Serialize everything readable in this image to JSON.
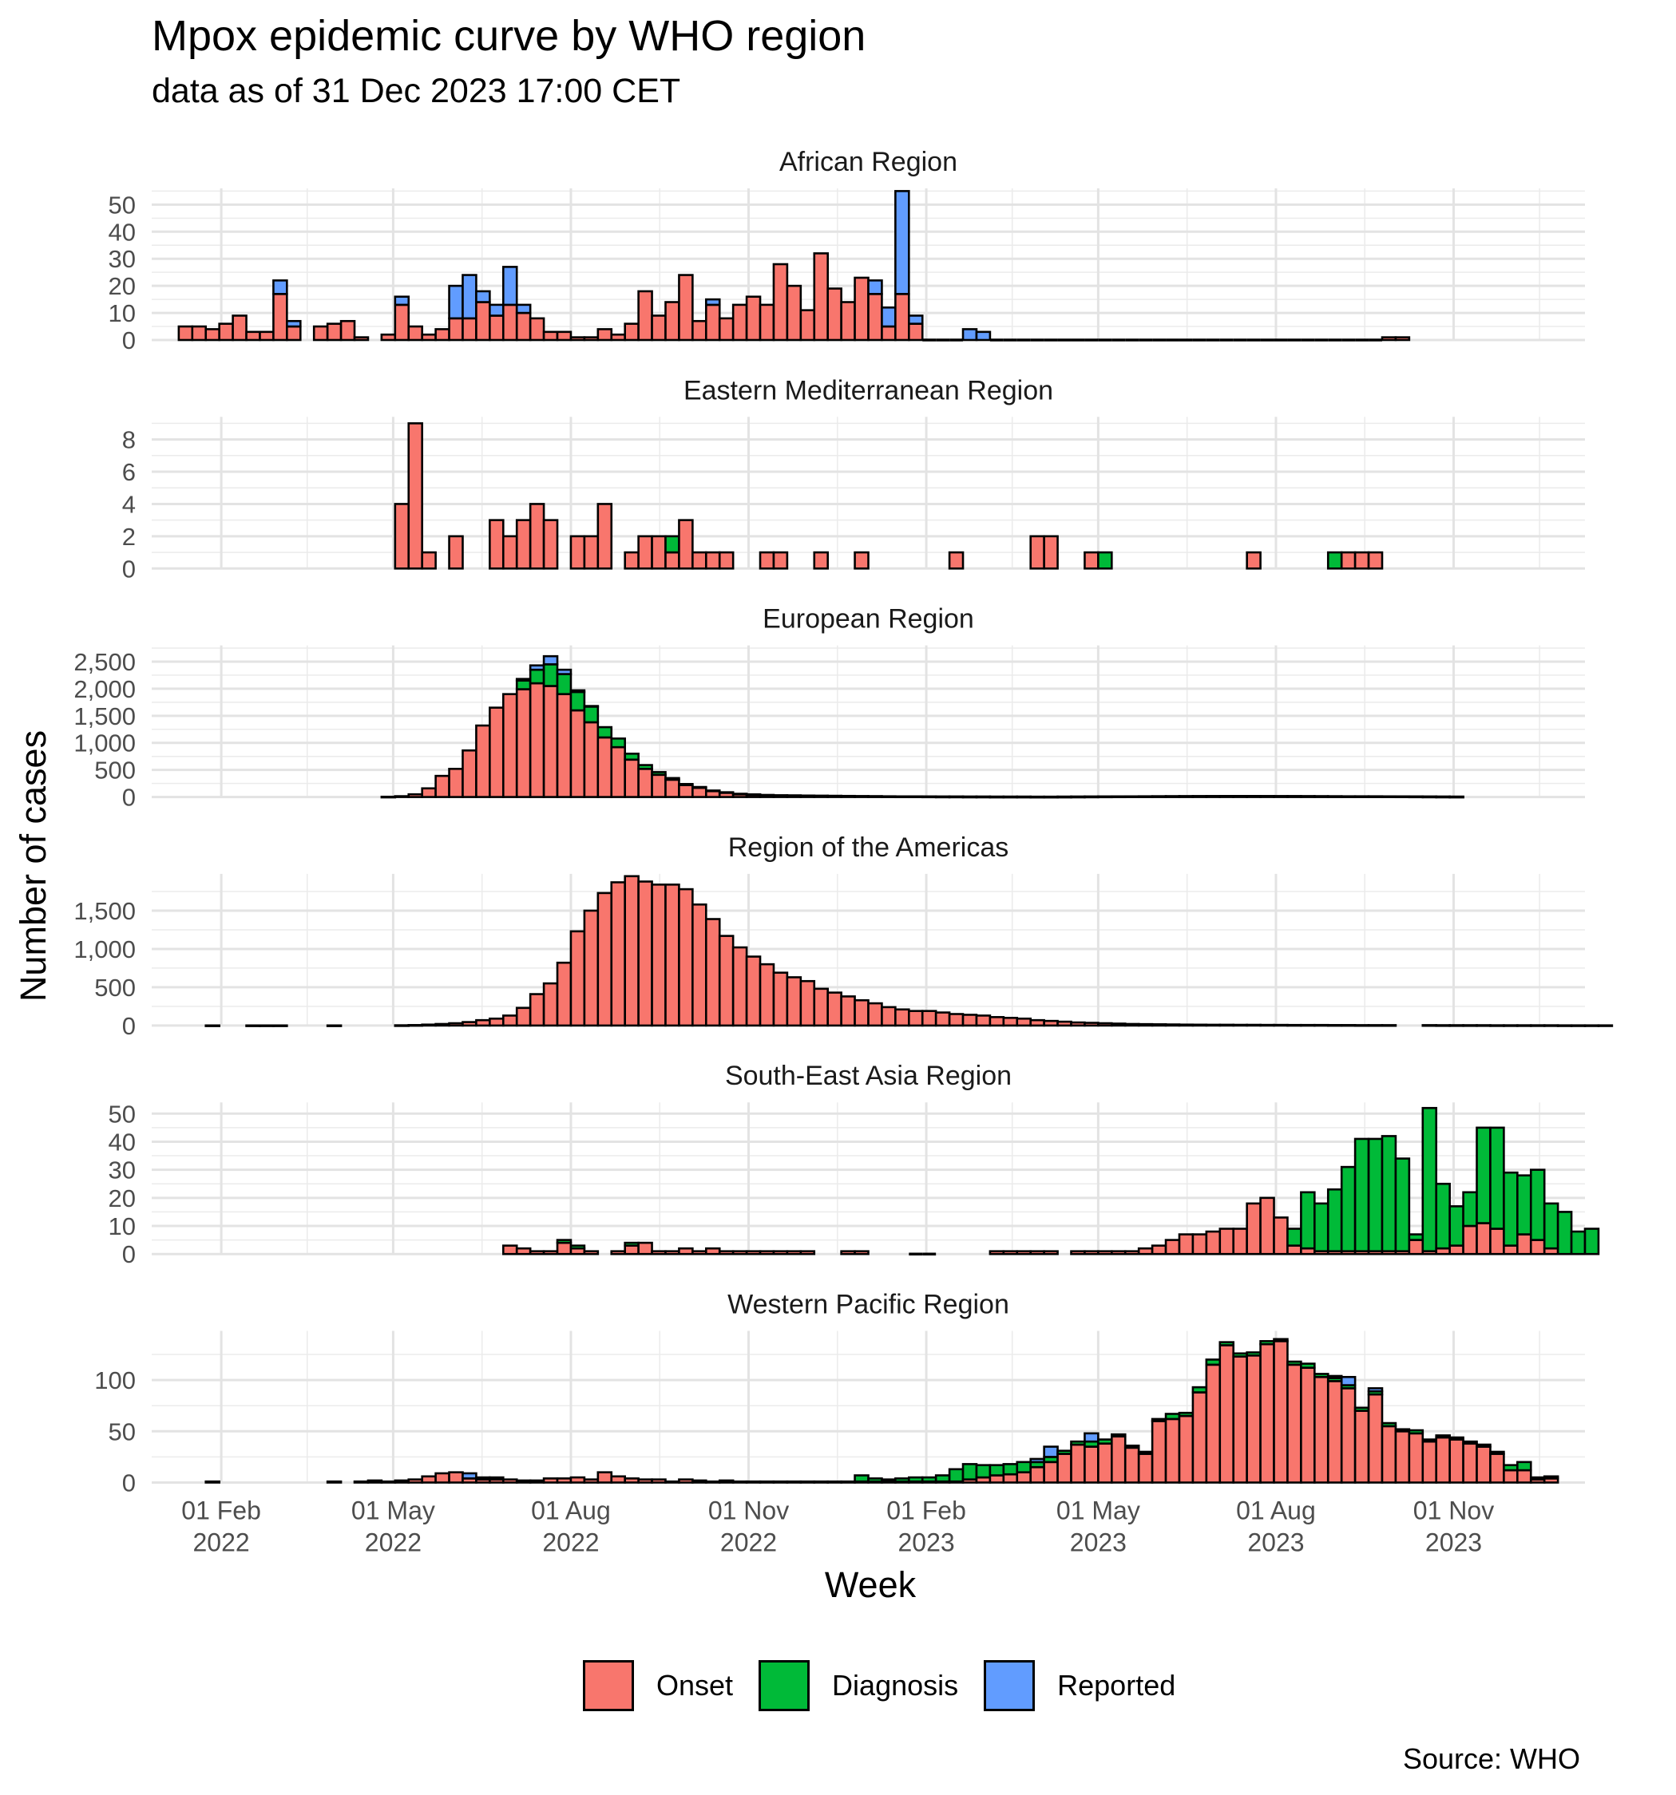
{
  "figure": {
    "title": "Mpox epidemic curve by WHO region",
    "subtitle": "data as of 31 Dec 2023 17:00 CET",
    "caption": "Source: WHO",
    "xlabel": "Week",
    "ylabel": "Number of cases"
  },
  "legend": [
    {
      "label": "Onset",
      "color": "#F8766D"
    },
    {
      "label": "Diagnosis",
      "color": "#00BA38"
    },
    {
      "label": "Reported",
      "color": "#619CFF"
    }
  ],
  "chart_data": {
    "type": "bar",
    "stacked": true,
    "facets": "vertical, free y scales, shared x axis",
    "x_unit": "week (start date)",
    "x_range": [
      "2021-12-27",
      "2024-01-08"
    ],
    "x_ticks": [
      {
        "date": "2022-02-01",
        "line1": "01 Feb",
        "line2": "2022"
      },
      {
        "date": "2022-05-01",
        "line1": "01 May",
        "line2": "2022"
      },
      {
        "date": "2022-08-01",
        "line1": "01 Aug",
        "line2": "2022"
      },
      {
        "date": "2022-11-01",
        "line1": "01 Nov",
        "line2": "2022"
      },
      {
        "date": "2023-02-01",
        "line1": "01 Feb",
        "line2": "2023"
      },
      {
        "date": "2023-05-01",
        "line1": "01 May",
        "line2": "2023"
      },
      {
        "date": "2023-08-01",
        "line1": "01 Aug",
        "line2": "2023"
      },
      {
        "date": "2023-11-01",
        "line1": "01 Nov",
        "line2": "2023"
      }
    ],
    "series_names": [
      "Onset",
      "Diagnosis",
      "Reported"
    ],
    "panels": [
      {
        "name": "African Region",
        "ylim": [
          0,
          56
        ],
        "yticks": [
          0,
          10,
          20,
          30,
          40,
          50
        ],
        "ytick_labels": [
          "0",
          "10",
          "20",
          "30",
          "40",
          "50"
        ],
        "start": "2022-01-10",
        "onset": [
          5,
          5,
          4,
          6,
          9,
          3,
          3,
          17,
          5,
          null,
          5,
          6,
          7,
          1,
          null,
          2,
          13,
          5,
          2,
          4,
          8,
          8,
          14,
          9,
          13,
          10,
          8,
          3,
          3,
          1,
          1,
          4,
          2,
          6,
          18,
          9,
          14,
          24,
          7,
          13,
          8,
          13,
          16,
          13,
          28,
          20,
          11,
          32,
          19,
          14,
          23,
          17,
          5,
          17,
          6,
          0,
          0,
          0,
          0,
          0,
          0,
          0,
          0,
          0,
          0,
          0,
          0,
          0,
          0,
          0,
          0,
          0,
          0,
          0,
          0,
          0,
          0,
          0,
          0,
          0,
          0,
          0,
          0,
          0,
          0,
          0,
          0,
          0,
          0,
          1,
          1
        ],
        "diagnosis": [],
        "reported": [
          0,
          0,
          0,
          0,
          0,
          0,
          0,
          5,
          2,
          0,
          0,
          0,
          0,
          0,
          0,
          0,
          3,
          0,
          0,
          0,
          12,
          16,
          4,
          4,
          14,
          3,
          0,
          0,
          0,
          0,
          0,
          0,
          0,
          0,
          0,
          0,
          0,
          0,
          0,
          2,
          0,
          0,
          0,
          0,
          0,
          0,
          0,
          0,
          0,
          0,
          0,
          5,
          7,
          38,
          3,
          0,
          0,
          0,
          4,
          3
        ]
      },
      {
        "name": "Eastern Mediterranean Region",
        "ylim": [
          0,
          9.4
        ],
        "yticks": [
          0,
          2,
          4,
          6,
          8
        ],
        "ytick_labels": [
          "0",
          "2",
          "4",
          "6",
          "8"
        ],
        "start": "2022-05-02",
        "onset": [
          4,
          9,
          1,
          null,
          2,
          null,
          null,
          3,
          2,
          3,
          4,
          3,
          null,
          2,
          2,
          4,
          null,
          1,
          2,
          2,
          1,
          3,
          1,
          1,
          1,
          null,
          null,
          1,
          1,
          null,
          null,
          1,
          null,
          null,
          1,
          null,
          null,
          null,
          null,
          null,
          null,
          1,
          null,
          null,
          null,
          null,
          null,
          2,
          2,
          null,
          null,
          1,
          0,
          null,
          null,
          null,
          null,
          null,
          null,
          null,
          null,
          null,
          null,
          1,
          null,
          null,
          null,
          null,
          null,
          0,
          1,
          1,
          1
        ],
        "diagnosis": [
          0,
          0,
          0,
          0,
          0,
          0,
          0,
          0,
          0,
          0,
          0,
          0,
          0,
          0,
          0,
          0,
          0,
          0,
          0,
          0,
          1,
          0,
          0,
          0,
          0,
          0,
          0,
          0,
          0,
          0,
          0,
          0,
          0,
          0,
          0,
          0,
          0,
          0,
          0,
          0,
          0,
          0,
          0,
          0,
          0,
          0,
          0,
          0,
          0,
          0,
          0,
          0,
          1,
          0,
          0,
          0,
          0,
          0,
          0,
          0,
          0,
          0,
          0,
          0,
          0,
          0,
          0,
          0,
          0,
          1
        ]
      },
      {
        "name": "European Region",
        "ylim": [
          0,
          2800
        ],
        "yticks": [
          0,
          500,
          1000,
          1500,
          2000,
          2500
        ],
        "ytick_labels": [
          "0",
          "500",
          "1,000",
          "1,500",
          "2,000",
          "2,500"
        ],
        "start": "2022-04-25",
        "onset": [
          5,
          15,
          50,
          160,
          390,
          520,
          860,
          1320,
          1650,
          1900,
          1990,
          2100,
          2050,
          1900,
          1600,
          1380,
          1100,
          920,
          690,
          520,
          410,
          320,
          220,
          170,
          110,
          80,
          55,
          45,
          35,
          30,
          28,
          25,
          22,
          20,
          18,
          15,
          14,
          12,
          10,
          10,
          9,
          8,
          8,
          7,
          7,
          6,
          6,
          6,
          5,
          5,
          6,
          7,
          8,
          9,
          10,
          11,
          12,
          13,
          14,
          15,
          16,
          17,
          18,
          18,
          18,
          17,
          16,
          16,
          15,
          14,
          13,
          12,
          12,
          12,
          11,
          10,
          9,
          8,
          7,
          6
        ],
        "diagnosis": [
          0,
          0,
          0,
          0,
          0,
          0,
          0,
          0,
          0,
          0,
          160,
          250,
          400,
          370,
          340,
          290,
          190,
          160,
          110,
          70,
          50,
          30,
          20,
          15,
          10,
          8,
          5,
          4,
          3,
          2,
          2,
          2,
          2,
          2,
          2,
          2,
          1,
          1,
          1,
          1,
          1,
          1,
          1,
          1,
          1,
          1,
          1,
          1,
          1,
          1,
          1,
          1,
          1,
          1,
          1,
          1,
          1,
          1,
          1,
          1,
          1,
          1,
          1,
          1,
          1,
          1,
          1,
          1,
          1,
          1,
          1,
          1,
          1,
          1,
          1,
          1,
          1,
          1,
          1,
          1
        ],
        "reported": [
          0,
          0,
          0,
          0,
          0,
          0,
          0,
          0,
          0,
          0,
          30,
          80,
          150,
          80,
          30,
          10,
          0,
          0,
          0,
          0,
          0,
          0,
          0,
          0,
          0,
          0,
          0,
          0,
          0,
          0,
          0,
          0,
          0,
          0,
          0,
          0,
          0,
          0,
          0,
          0,
          0,
          0,
          0,
          0,
          0,
          0,
          0,
          0,
          0,
          0,
          0,
          0,
          0,
          0,
          0,
          0,
          0,
          0,
          0,
          0,
          0,
          0,
          0,
          0,
          0,
          0,
          0,
          0,
          0,
          0,
          0,
          0,
          0,
          0,
          0,
          0,
          0,
          0,
          0,
          0
        ]
      },
      {
        "name": "Region of the Americas",
        "ylim": [
          0,
          1980
        ],
        "yticks": [
          0,
          500,
          1000,
          1500
        ],
        "ytick_labels": [
          "0",
          "500",
          "1,000",
          "1,500"
        ],
        "start": "2022-01-24",
        "onset": [
          1,
          null,
          null,
          1,
          1,
          1,
          null,
          null,
          null,
          1,
          null,
          null,
          null,
          null,
          3,
          6,
          12,
          20,
          30,
          45,
          70,
          90,
          130,
          230,
          410,
          550,
          820,
          1230,
          1500,
          1730,
          1870,
          1950,
          1880,
          1840,
          1840,
          1780,
          1580,
          1390,
          1170,
          1020,
          900,
          800,
          690,
          630,
          580,
          480,
          430,
          380,
          330,
          290,
          240,
          210,
          190,
          190,
          170,
          150,
          140,
          130,
          110,
          100,
          90,
          70,
          60,
          50,
          40,
          35,
          30,
          25,
          20,
          18,
          16,
          14,
          12,
          11,
          10,
          10,
          9,
          9,
          8,
          8,
          7,
          7,
          7,
          6,
          6,
          5,
          5,
          5,
          null,
          null,
          5,
          4,
          4,
          4,
          4,
          3,
          3,
          3,
          3,
          3,
          2,
          2,
          2,
          2
        ],
        "diagnosis": [],
        "reported": []
      },
      {
        "name": "South-East Asia Region",
        "ylim": [
          0,
          54
        ],
        "yticks": [
          0,
          10,
          20,
          30,
          40,
          50
        ],
        "ytick_labels": [
          "0",
          "10",
          "20",
          "30",
          "40",
          "50"
        ],
        "start": "2022-06-27",
        "onset": [
          3,
          2,
          1,
          1,
          4,
          2,
          1,
          null,
          1,
          3,
          4,
          1,
          1,
          2,
          1,
          2,
          1,
          1,
          1,
          1,
          1,
          1,
          1,
          null,
          null,
          1,
          1,
          null,
          null,
          null,
          0,
          0,
          null,
          null,
          null,
          null,
          1,
          1,
          1,
          1,
          1,
          null,
          1,
          1,
          1,
          1,
          1,
          2,
          3,
          5,
          7,
          7,
          8,
          9,
          9,
          18,
          20,
          13,
          3,
          2,
          1,
          1,
          1,
          1,
          1,
          1,
          1,
          5,
          1,
          2,
          3,
          10,
          11,
          9,
          3,
          7,
          5,
          2,
          0,
          0,
          0
        ],
        "diagnosis": [
          0,
          0,
          0,
          0,
          1,
          1,
          0,
          0,
          0,
          1,
          0,
          0,
          0,
          0,
          0,
          0,
          0,
          0,
          0,
          0,
          0,
          0,
          0,
          0,
          0,
          0,
          0,
          0,
          0,
          0,
          0,
          0,
          0,
          0,
          0,
          0,
          0,
          0,
          0,
          0,
          0,
          0,
          0,
          0,
          0,
          0,
          0,
          0,
          0,
          0,
          0,
          0,
          0,
          0,
          0,
          0,
          0,
          0,
          6,
          20,
          17,
          22,
          30,
          40,
          40,
          41,
          33,
          2,
          51,
          23,
          14,
          12,
          34,
          36,
          26,
          21,
          25,
          16,
          15,
          8,
          9,
          6
        ],
        "reported": []
      },
      {
        "name": "Western Pacific Region",
        "ylim": [
          0,
          148
        ],
        "yticks": [
          0,
          50,
          100
        ],
        "ytick_labels": [
          "0",
          "50",
          "100"
        ],
        "start": "2022-01-24",
        "onset": [
          1,
          null,
          null,
          null,
          null,
          null,
          null,
          null,
          null,
          1,
          null,
          1,
          2,
          1,
          2,
          3,
          6,
          9,
          10,
          4,
          3,
          3,
          3,
          2,
          2,
          4,
          4,
          5,
          3,
          10,
          6,
          4,
          3,
          3,
          1,
          3,
          2,
          1,
          2,
          1,
          1,
          1,
          1,
          1,
          1,
          1,
          1,
          1,
          1,
          1,
          1,
          1,
          1,
          1,
          1,
          1,
          3,
          5,
          7,
          8,
          10,
          15,
          20,
          28,
          37,
          35,
          38,
          45,
          34,
          28,
          60,
          62,
          65,
          88,
          115,
          134,
          123,
          124,
          135,
          138,
          115,
          112,
          103,
          99,
          92,
          70,
          86,
          55,
          50,
          48,
          40,
          44,
          42,
          38,
          35,
          28,
          12,
          12,
          3,
          4
        ],
        "diagnosis": [
          0,
          0,
          0,
          0,
          0,
          0,
          0,
          0,
          0,
          0,
          0,
          0,
          0,
          0,
          0,
          0,
          0,
          0,
          0,
          0,
          0,
          0,
          0,
          0,
          0,
          0,
          0,
          0,
          0,
          0,
          0,
          0,
          0,
          0,
          0,
          0,
          0,
          0,
          0,
          0,
          0,
          0,
          0,
          0,
          0,
          0,
          0,
          0,
          6,
          3,
          2,
          3,
          4,
          4,
          6,
          12,
          15,
          12,
          10,
          10,
          10,
          5,
          5,
          3,
          3,
          5,
          4,
          2,
          2,
          2,
          2,
          5,
          3,
          5,
          5,
          3,
          3,
          3,
          3,
          2,
          3,
          4,
          3,
          3,
          3,
          3,
          3,
          3,
          2,
          3,
          2,
          2,
          2,
          2,
          2,
          2,
          5,
          8,
          2,
          2
        ],
        "reported": [
          0,
          0,
          0,
          0,
          0,
          0,
          0,
          0,
          0,
          0,
          0,
          0,
          0,
          0,
          0,
          0,
          0,
          0,
          0,
          5,
          2,
          2,
          0,
          0,
          0,
          0,
          0,
          0,
          0,
          0,
          0,
          0,
          0,
          0,
          0,
          0,
          0,
          0,
          0,
          0,
          0,
          0,
          0,
          0,
          0,
          0,
          0,
          0,
          0,
          0,
          0,
          0,
          0,
          0,
          0,
          0,
          0,
          0,
          0,
          0,
          0,
          3,
          10,
          0,
          0,
          8,
          0,
          0,
          0,
          0,
          0,
          0,
          0,
          0,
          0,
          0,
          0,
          0,
          0,
          0,
          0,
          0,
          0,
          2,
          8,
          0,
          3,
          0,
          0,
          0,
          0,
          0,
          0,
          0,
          0,
          0,
          0,
          0,
          0,
          0
        ]
      }
    ]
  }
}
